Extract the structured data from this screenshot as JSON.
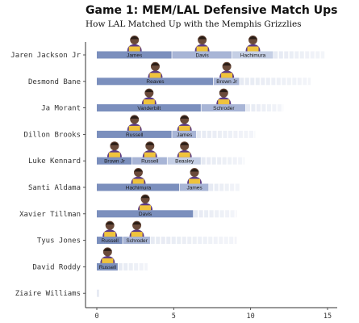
{
  "chart_data": {
    "type": "bar",
    "title": "Game 1: MEM/LAL Defensive Match Ups",
    "subtitle": "How LAL Matched Up with the Memphis Grizzlies",
    "xlabel": "",
    "ylabel": "",
    "xlim": [
      0,
      15
    ],
    "x_ticks": [
      "0",
      "5",
      "10",
      "15"
    ],
    "grid": false,
    "colors": {
      "segment_fills": [
        "#7b8fbd",
        "#a8b5d6",
        "#c5cfe5",
        "#dbe1ef"
      ],
      "faded_tail": "#e6eaf3",
      "axis": "#333333"
    },
    "rows": [
      {
        "player": "Jaren Jackson Jr",
        "total": 14.8,
        "segments": [
          {
            "defender": "James",
            "value": 4.9
          },
          {
            "defender": "Davis",
            "value": 3.9
          },
          {
            "defender": "Hachimura",
            "value": 2.7
          }
        ]
      },
      {
        "player": "Desmond Bane",
        "total": 13.9,
        "segments": [
          {
            "defender": "Reaves",
            "value": 7.6
          },
          {
            "defender": "Brown Jr",
            "value": 1.7
          }
        ]
      },
      {
        "player": "Ja Morant",
        "total": 12.1,
        "segments": [
          {
            "defender": "Vanderbilt",
            "value": 6.8
          },
          {
            "defender": "Schroder",
            "value": 2.9
          }
        ]
      },
      {
        "player": "Dillon Brooks",
        "total": 10.3,
        "segments": [
          {
            "defender": "Russell",
            "value": 4.9
          },
          {
            "defender": "James",
            "value": 1.6
          }
        ]
      },
      {
        "player": "Luke Kennard",
        "total": 9.6,
        "segments": [
          {
            "defender": "Brown Jr",
            "value": 2.3
          },
          {
            "defender": "Russell",
            "value": 2.3
          },
          {
            "defender": "Beasley",
            "value": 2.2
          }
        ]
      },
      {
        "player": "Santi Aldama",
        "total": 9.3,
        "segments": [
          {
            "defender": "Hachimura",
            "value": 5.4
          },
          {
            "defender": "James",
            "value": 1.9
          }
        ]
      },
      {
        "player": "Xavier Tillman",
        "total": 9.1,
        "segments": [
          {
            "defender": "Davis",
            "value": 6.3
          }
        ]
      },
      {
        "player": "Tyus Jones",
        "total": 9.1,
        "segments": [
          {
            "defender": "Russell",
            "value": 1.7
          },
          {
            "defender": "Schroder",
            "value": 1.8
          }
        ]
      },
      {
        "player": "David Roddy",
        "total": 3.3,
        "segments": [
          {
            "defender": "Russell",
            "value": 1.4
          }
        ]
      },
      {
        "player": "Ziaire Williams",
        "total": 0.15,
        "segments": []
      }
    ]
  }
}
